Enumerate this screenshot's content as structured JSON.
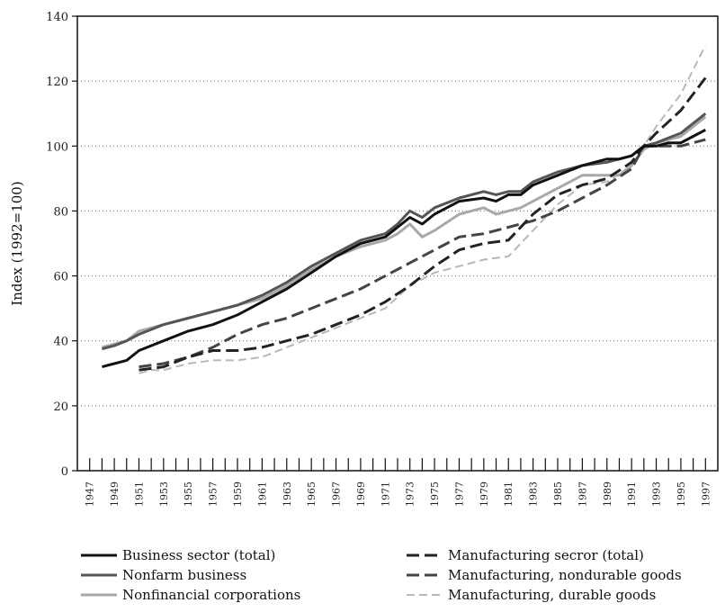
{
  "chart_data": {
    "type": "line",
    "title": "",
    "xlabel": "",
    "ylabel": "Index (1992=100)",
    "ylim": [
      0,
      140
    ],
    "yticks": [
      0,
      20,
      40,
      60,
      80,
      100,
      120,
      140
    ],
    "xlim": [
      1946,
      1998
    ],
    "xtick_labels": [
      "1947",
      "1949",
      "1951",
      "1953",
      "1955",
      "1957",
      "1959",
      "1961",
      "1963",
      "1965",
      "1967",
      "1969",
      "1971",
      "1973",
      "1975",
      "1977",
      "1979",
      "1981",
      "1983",
      "1985",
      "1987",
      "1989",
      "1991",
      "1993",
      "1995",
      "1997"
    ],
    "grid": "horizontal dotted",
    "legend_position": "bottom",
    "series": [
      {
        "name": "Business sector (total)",
        "color": "#111111",
        "style": "solid",
        "width": 3,
        "x": [
          1948,
          1949,
          1950,
          1951,
          1953,
          1955,
          1957,
          1959,
          1961,
          1963,
          1965,
          1967,
          1969,
          1971,
          1972,
          1973,
          1974,
          1975,
          1977,
          1979,
          1980,
          1981,
          1982,
          1983,
          1985,
          1987,
          1989,
          1990,
          1991,
          1992,
          1993,
          1994,
          1995,
          1996,
          1997
        ],
        "y": [
          32,
          33,
          34,
          37,
          40,
          43,
          45,
          48,
          52,
          56,
          61,
          66,
          70,
          72,
          75,
          78,
          76,
          79,
          83,
          84,
          83,
          85,
          85,
          88,
          91,
          94,
          96,
          96,
          97,
          100,
          100,
          101,
          101,
          103,
          105
        ]
      },
      {
        "name": "Nonfarm business",
        "color": "#555555",
        "style": "solid",
        "width": 3,
        "x": [
          1948,
          1949,
          1950,
          1951,
          1953,
          1955,
          1957,
          1959,
          1961,
          1963,
          1965,
          1967,
          1969,
          1971,
          1972,
          1973,
          1974,
          1975,
          1977,
          1979,
          1980,
          1981,
          1982,
          1983,
          1985,
          1987,
          1989,
          1991,
          1992,
          1993,
          1995,
          1997
        ],
        "y": [
          37.5,
          38.5,
          40,
          42,
          45,
          47,
          49,
          51,
          54,
          58,
          63,
          67,
          71,
          73,
          76,
          80,
          78,
          81,
          84,
          86,
          85,
          86,
          86,
          89,
          92,
          94,
          95,
          97,
          100,
          101,
          104,
          110
        ]
      },
      {
        "name": "Nonfinancial corporations",
        "color": "#a8a8a8",
        "style": "solid",
        "width": 3,
        "x": [
          1948,
          1949,
          1950,
          1951,
          1953,
          1955,
          1957,
          1959,
          1961,
          1963,
          1965,
          1967,
          1969,
          1971,
          1972,
          1973,
          1974,
          1975,
          1977,
          1979,
          1980,
          1981,
          1982,
          1983,
          1985,
          1987,
          1989,
          1990,
          1991,
          1992,
          1993,
          1995,
          1997
        ],
        "y": [
          38,
          39,
          40,
          43,
          45,
          47,
          49,
          51,
          53,
          57,
          62,
          66,
          69,
          71,
          73,
          76,
          72,
          74,
          79,
          81,
          79,
          80,
          81,
          83,
          87,
          91,
          91,
          91,
          94,
          99,
          101,
          103,
          109
        ]
      },
      {
        "name": "Manufacturing secror (total)",
        "color": "#222222",
        "style": "dashed",
        "width": 3,
        "x": [
          1951,
          1953,
          1955,
          1957,
          1959,
          1961,
          1963,
          1965,
          1967,
          1969,
          1971,
          1973,
          1975,
          1977,
          1979,
          1981,
          1983,
          1985,
          1987,
          1989,
          1991,
          1992,
          1993,
          1995,
          1997
        ],
        "y": [
          31,
          32,
          35,
          37,
          37,
          38,
          40,
          42,
          45,
          48,
          52,
          57,
          63,
          68,
          70,
          71,
          79,
          85,
          88,
          90,
          95,
          100,
          104,
          111,
          121
        ]
      },
      {
        "name": "Manufacturing, nondurable goods",
        "color": "#444444",
        "style": "dashed",
        "width": 3,
        "x": [
          1951,
          1953,
          1955,
          1957,
          1959,
          1961,
          1963,
          1965,
          1967,
          1969,
          1971,
          1973,
          1975,
          1977,
          1979,
          1981,
          1983,
          1985,
          1987,
          1989,
          1991,
          1992,
          1993,
          1995,
          1997
        ],
        "y": [
          32,
          33,
          35,
          38,
          42,
          45,
          47,
          50,
          53,
          56,
          60,
          64,
          68,
          72,
          73,
          75,
          77,
          80,
          84,
          88,
          93,
          100,
          100,
          100,
          102
        ]
      },
      {
        "name": "Manufacturing, durable goods",
        "color": "#b8b8b8",
        "style": "dashed",
        "width": 2,
        "x": [
          1951,
          1952,
          1953,
          1955,
          1957,
          1959,
          1961,
          1963,
          1965,
          1967,
          1969,
          1971,
          1973,
          1975,
          1977,
          1979,
          1981,
          1983,
          1985,
          1987,
          1989,
          1991,
          1992,
          1993,
          1995,
          1997
        ],
        "y": [
          30,
          31,
          31,
          33,
          34,
          34,
          35,
          38,
          41,
          44,
          47,
          50,
          57,
          61,
          63,
          65,
          66,
          74,
          82,
          88,
          89,
          94,
          100,
          106,
          116,
          131
        ]
      }
    ]
  }
}
